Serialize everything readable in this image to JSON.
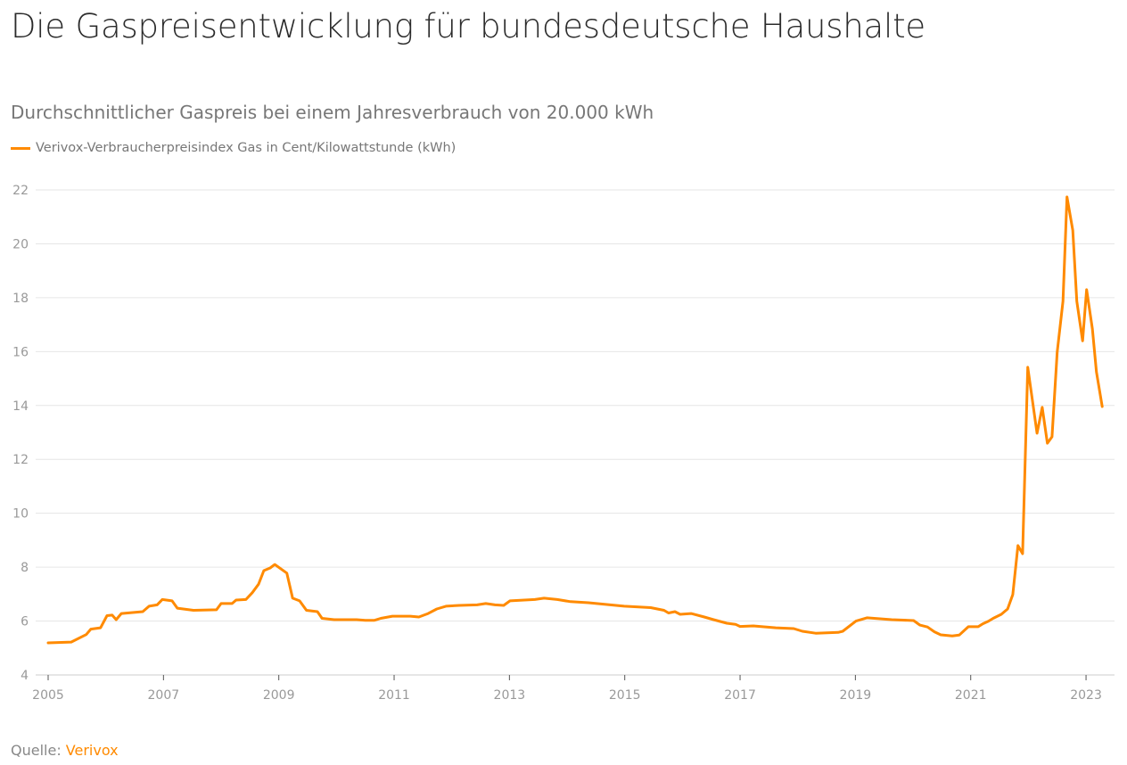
{
  "title": "Die Gaspreisentwicklung für bundesdeutsche Haushalte",
  "subtitle": "Durchschnittlicher Gaspreis bei einem Jahresverbrauch von 20.000 kWh",
  "source": {
    "label": "Quelle:",
    "link_text": "Verivox"
  },
  "colors": {
    "series": "#ff8a00",
    "grid": "#e6e6e6",
    "accent": "#ff8a00"
  },
  "chart_data": {
    "type": "line",
    "title": "Die Gaspreisentwicklung für bundesdeutsche Haushalte",
    "subtitle": "Durchschnittlicher Gaspreis bei einem Jahresverbrauch von 20.000 kWh",
    "xlabel": "",
    "ylabel": "",
    "xlim": [
      2004.95,
      2023.5
    ],
    "ylim": [
      4,
      22
    ],
    "grid": "horizontal",
    "legend_position": "top-left",
    "x_ticks": [
      "2005",
      "2007",
      "2009",
      "2011",
      "2013",
      "2015",
      "2017",
      "2019",
      "2021",
      "2023"
    ],
    "y_ticks": [
      "4",
      "6",
      "8",
      "10",
      "12",
      "14",
      "16",
      "18",
      "20",
      "22"
    ],
    "series": [
      {
        "name": "Verivox-Verbraucherpreisindex Gas in Cent/Kilowattstunde (kWh)",
        "points": [
          [
            2005.0,
            5.19
          ],
          [
            2005.4,
            5.22
          ],
          [
            2005.66,
            5.5
          ],
          [
            2005.74,
            5.7
          ],
          [
            2005.91,
            5.75
          ],
          [
            2006.02,
            6.2
          ],
          [
            2006.11,
            6.22
          ],
          [
            2006.18,
            6.05
          ],
          [
            2006.27,
            6.28
          ],
          [
            2006.64,
            6.35
          ],
          [
            2006.75,
            6.55
          ],
          [
            2006.89,
            6.6
          ],
          [
            2006.98,
            6.8
          ],
          [
            2007.15,
            6.75
          ],
          [
            2007.24,
            6.48
          ],
          [
            2007.52,
            6.4
          ],
          [
            2007.92,
            6.42
          ],
          [
            2008.0,
            6.65
          ],
          [
            2008.19,
            6.65
          ],
          [
            2008.26,
            6.78
          ],
          [
            2008.43,
            6.8
          ],
          [
            2008.54,
            7.05
          ],
          [
            2008.65,
            7.37
          ],
          [
            2008.74,
            7.87
          ],
          [
            2008.85,
            7.97
          ],
          [
            2008.93,
            8.1
          ],
          [
            2009.14,
            7.78
          ],
          [
            2009.24,
            6.85
          ],
          [
            2009.36,
            6.75
          ],
          [
            2009.48,
            6.4
          ],
          [
            2009.67,
            6.35
          ],
          [
            2009.75,
            6.1
          ],
          [
            2009.96,
            6.05
          ],
          [
            2010.35,
            6.05
          ],
          [
            2010.5,
            6.03
          ],
          [
            2010.66,
            6.03
          ],
          [
            2010.77,
            6.1
          ],
          [
            2010.97,
            6.18
          ],
          [
            2011.28,
            6.18
          ],
          [
            2011.43,
            6.15
          ],
          [
            2011.59,
            6.28
          ],
          [
            2011.74,
            6.45
          ],
          [
            2011.9,
            6.55
          ],
          [
            2012.13,
            6.58
          ],
          [
            2012.44,
            6.6
          ],
          [
            2012.59,
            6.65
          ],
          [
            2012.75,
            6.6
          ],
          [
            2012.9,
            6.58
          ],
          [
            2013.01,
            6.75
          ],
          [
            2013.44,
            6.8
          ],
          [
            2013.6,
            6.85
          ],
          [
            2013.83,
            6.8
          ],
          [
            2014.06,
            6.72
          ],
          [
            2014.37,
            6.68
          ],
          [
            2014.99,
            6.55
          ],
          [
            2015.45,
            6.5
          ],
          [
            2015.68,
            6.4
          ],
          [
            2015.76,
            6.3
          ],
          [
            2015.87,
            6.35
          ],
          [
            2015.96,
            6.25
          ],
          [
            2016.15,
            6.28
          ],
          [
            2016.38,
            6.15
          ],
          [
            2016.54,
            6.05
          ],
          [
            2016.77,
            5.92
          ],
          [
            2016.92,
            5.88
          ],
          [
            2017.0,
            5.8
          ],
          [
            2017.23,
            5.82
          ],
          [
            2017.46,
            5.78
          ],
          [
            2017.62,
            5.75
          ],
          [
            2017.93,
            5.72
          ],
          [
            2018.08,
            5.62
          ],
          [
            2018.31,
            5.55
          ],
          [
            2018.7,
            5.58
          ],
          [
            2018.78,
            5.62
          ],
          [
            2019.01,
            6.0
          ],
          [
            2019.2,
            6.12
          ],
          [
            2019.63,
            6.05
          ],
          [
            2020.01,
            6.02
          ],
          [
            2020.12,
            5.85
          ],
          [
            2020.25,
            5.78
          ],
          [
            2020.37,
            5.6
          ],
          [
            2020.48,
            5.49
          ],
          [
            2020.68,
            5.45
          ],
          [
            2020.8,
            5.48
          ],
          [
            2020.96,
            5.79
          ],
          [
            2021.13,
            5.79
          ],
          [
            2021.21,
            5.9
          ],
          [
            2021.31,
            6.0
          ],
          [
            2021.39,
            6.1
          ],
          [
            2021.53,
            6.25
          ],
          [
            2021.64,
            6.45
          ],
          [
            2021.73,
            6.98
          ],
          [
            2021.82,
            8.8
          ],
          [
            2021.9,
            8.5
          ],
          [
            2021.99,
            15.42
          ],
          [
            2022.15,
            12.97
          ],
          [
            2022.24,
            13.93
          ],
          [
            2022.33,
            12.6
          ],
          [
            2022.41,
            12.84
          ],
          [
            2022.5,
            15.98
          ],
          [
            2022.6,
            17.87
          ],
          [
            2022.67,
            21.74
          ],
          [
            2022.77,
            20.5
          ],
          [
            2022.84,
            17.87
          ],
          [
            2022.94,
            16.4
          ],
          [
            2023.01,
            18.3
          ],
          [
            2023.11,
            16.84
          ],
          [
            2023.18,
            15.25
          ],
          [
            2023.28,
            13.96
          ]
        ]
      }
    ]
  }
}
